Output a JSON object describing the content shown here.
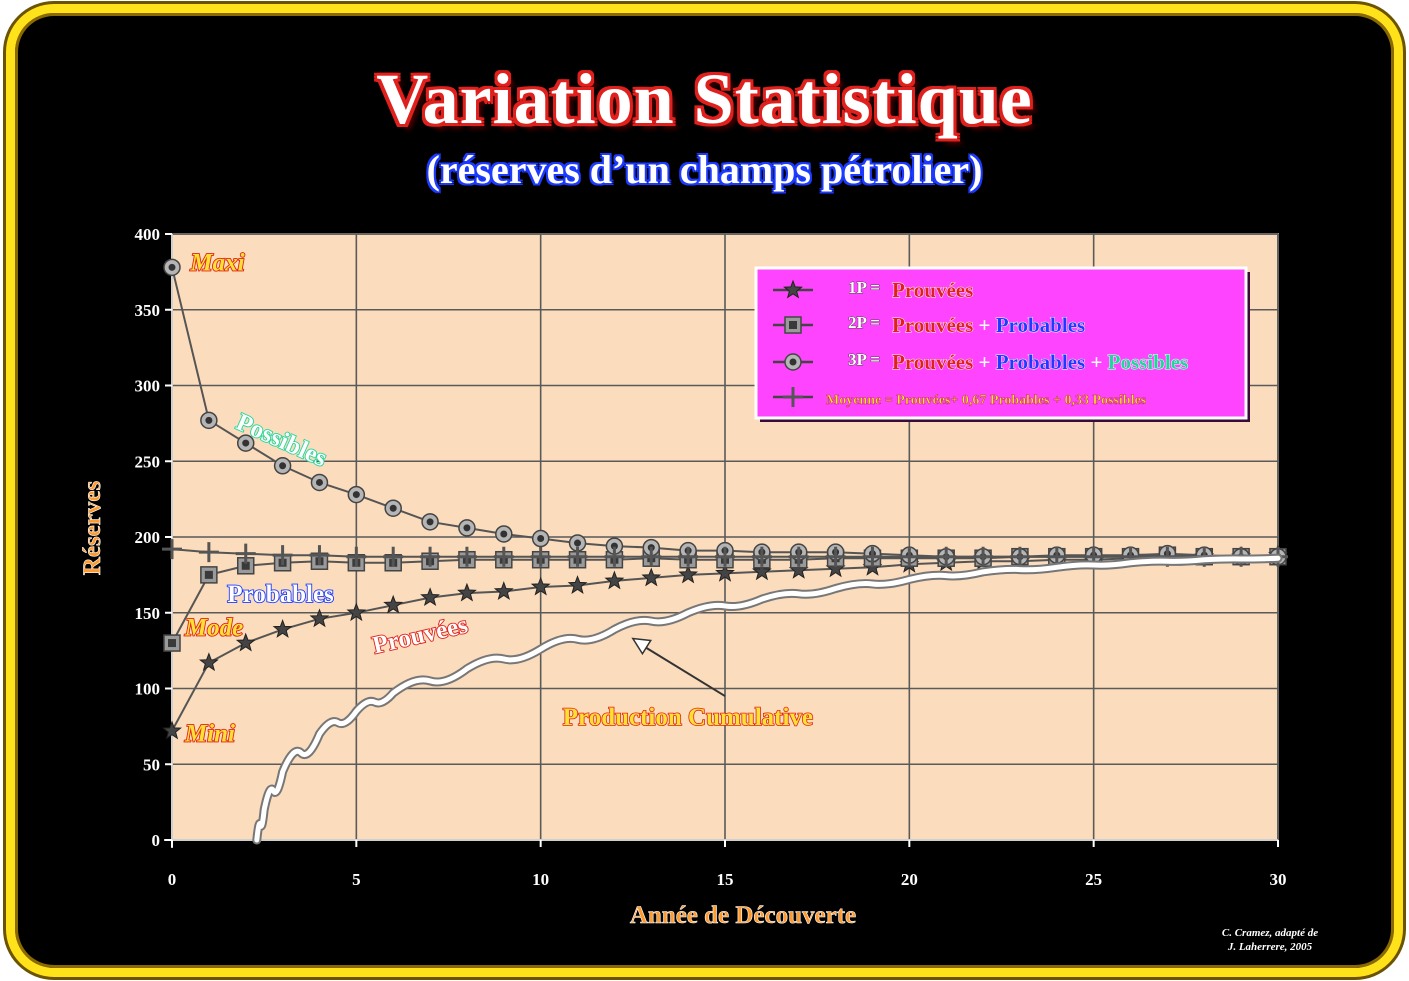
{
  "title": "Variation Statistique",
  "subtitle": "(réserves d’un champs pétrolier)",
  "credit": [
    "C. Cramez, adapté de",
    "J. Laherrere, 2005"
  ],
  "colors": {
    "frame": "#ffe21a",
    "background": "#000000",
    "plot_bg": "#fbdcbc",
    "legend_bg": "#ff44ff",
    "prouvees": "#e0201c",
    "probables": "#1d3bff",
    "possibles": "#1fd79a",
    "production": "#ffffff",
    "axis_label": "#ff9a2e"
  },
  "chart_data": {
    "type": "line",
    "xlabel": "Année de Découverte",
    "ylabel": "Réserves",
    "xlim": [
      0,
      30
    ],
    "ylim": [
      0,
      400
    ],
    "xticks": [
      0,
      5,
      10,
      15,
      20,
      25,
      30
    ],
    "yticks": [
      0,
      50,
      100,
      150,
      200,
      250,
      300,
      350,
      400
    ],
    "grid": true,
    "legend_position": "top-right",
    "legend": [
      {
        "code": "1P =",
        "parts": [
          {
            "t": "Prouvées",
            "c": "prouvees"
          }
        ]
      },
      {
        "code": "2P =",
        "parts": [
          {
            "t": "Prouvées",
            "c": "prouvees"
          },
          {
            "t": " + ",
            "c": "white"
          },
          {
            "t": "Probables",
            "c": "probables"
          }
        ]
      },
      {
        "code": "3P =",
        "parts": [
          {
            "t": "Prouvées",
            "c": "prouvees"
          },
          {
            "t": " + ",
            "c": "white"
          },
          {
            "t": "Probables",
            "c": "probables"
          },
          {
            "t": " + ",
            "c": "white"
          },
          {
            "t": "Possibles",
            "c": "possibles"
          }
        ]
      },
      {
        "code": "",
        "parts": [
          {
            "t": "Moyenne = Prouvées+ 0,67 Probables + 0,33 Possibles",
            "c": "gold"
          }
        ]
      }
    ],
    "series": [
      {
        "key": "1p",
        "marker": "star",
        "x": [
          0,
          1,
          2,
          3,
          4,
          5,
          6,
          7,
          8,
          9,
          10,
          11,
          12,
          13,
          14,
          15,
          16,
          17,
          18,
          19,
          20,
          21,
          22,
          23,
          24,
          25,
          26,
          27,
          28,
          29,
          30
        ],
        "values": [
          72,
          117,
          130,
          139,
          146,
          150,
          155,
          160,
          163,
          164,
          167,
          168,
          171,
          173,
          175,
          176,
          177,
          178,
          179,
          180,
          182,
          183,
          184,
          184,
          185,
          185,
          186,
          187,
          187,
          187,
          188
        ]
      },
      {
        "key": "2p",
        "marker": "square",
        "x": [
          0,
          1,
          2,
          3,
          4,
          5,
          6,
          7,
          8,
          9,
          10,
          11,
          12,
          13,
          14,
          15,
          16,
          17,
          18,
          19,
          20,
          21,
          22,
          23,
          24,
          25,
          26,
          27,
          28,
          29,
          30
        ],
        "values": [
          130,
          175,
          181,
          183,
          184,
          183,
          183,
          184,
          185,
          185,
          185,
          185,
          185,
          186,
          185,
          185,
          185,
          185,
          186,
          186,
          186,
          186,
          186,
          187,
          187,
          187,
          187,
          188,
          187,
          187,
          187
        ]
      },
      {
        "key": "3p",
        "marker": "circle",
        "x": [
          0,
          1,
          2,
          3,
          4,
          5,
          6,
          7,
          8,
          9,
          10,
          11,
          12,
          13,
          14,
          15,
          16,
          17,
          18,
          19,
          20,
          21,
          22,
          23,
          24,
          25,
          26,
          27,
          28,
          29,
          30
        ],
        "values": [
          378,
          277,
          262,
          247,
          236,
          228,
          219,
          210,
          206,
          202,
          199,
          196,
          194,
          193,
          191,
          191,
          190,
          190,
          190,
          189,
          188,
          187,
          187,
          187,
          188,
          188,
          188,
          189,
          188,
          187,
          187
        ]
      },
      {
        "key": "moyenne",
        "marker": "cross",
        "x": [
          0,
          1,
          2,
          3,
          4,
          5,
          6,
          7,
          8,
          9,
          10,
          11,
          12,
          13,
          14,
          15,
          16,
          17,
          18,
          19,
          20,
          21,
          22,
          23,
          24,
          25,
          26,
          27,
          28,
          29,
          30
        ],
        "values": [
          192,
          190,
          189,
          188,
          188,
          187,
          187,
          187,
          187,
          187,
          187,
          187,
          187,
          187,
          187,
          187,
          187,
          187,
          187,
          187,
          187,
          187,
          187,
          187,
          187,
          187,
          187,
          187,
          187,
          187,
          187
        ]
      },
      {
        "key": "production",
        "marker": "none",
        "x": [
          2.3,
          2.5,
          3,
          4,
          5,
          6,
          8,
          10,
          12,
          14,
          16,
          18,
          20,
          22,
          24,
          26,
          28,
          30
        ],
        "values": [
          0,
          20,
          45,
          70,
          85,
          97,
          113,
          126,
          139,
          150,
          159,
          166,
          172,
          177,
          180,
          183,
          185,
          186
        ]
      }
    ],
    "annotations": [
      {
        "text": "Maxi",
        "x": 0.5,
        "y": 376,
        "c": "prouvees",
        "italic": true,
        "rot": 0
      },
      {
        "text": "Mode",
        "x": 0.35,
        "y": 135,
        "c": "prouvees",
        "italic": true,
        "rot": 0
      },
      {
        "text": "Mini",
        "x": 0.35,
        "y": 65,
        "c": "prouvees",
        "italic": true,
        "rot": 0
      },
      {
        "text": "Possibles",
        "x": 1.7,
        "y": 272,
        "c": "possibles",
        "italic": false,
        "rot": 24
      },
      {
        "text": "Probables",
        "x": 1.5,
        "y": 157,
        "c": "probables",
        "italic": false,
        "rot": 0
      },
      {
        "text": "Prouvées",
        "x": 5.5,
        "y": 123,
        "c": "prouvees",
        "italic": false,
        "rot": -13
      },
      {
        "text": "Production Cumulative",
        "x": 10.6,
        "y": 76,
        "c": "gold",
        "italic": false,
        "rot": 0
      }
    ],
    "arrow": {
      "from": [
        15,
        95
      ],
      "to": [
        12.5,
        133
      ]
    }
  }
}
